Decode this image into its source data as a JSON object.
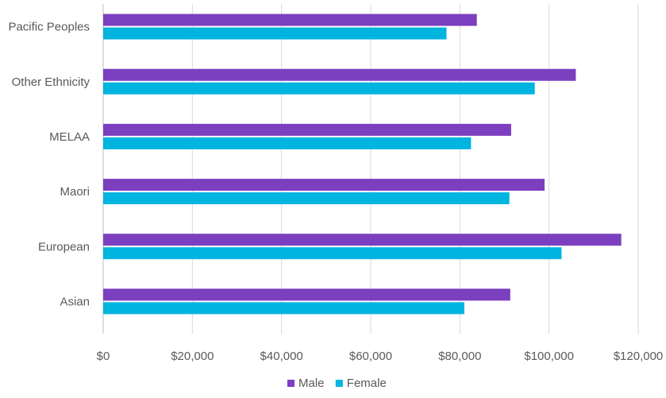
{
  "chart_data": {
    "type": "bar",
    "orientation": "horizontal",
    "title": "",
    "xlabel": "",
    "ylabel": "",
    "categories": [
      "Pacific Peoples",
      "Other Ethnicity",
      "MELAA",
      "Maori",
      "European",
      "Asian"
    ],
    "series": [
      {
        "name": "Male",
        "color": "#7b3fbf",
        "values": [
          83800,
          106000,
          91500,
          99000,
          116200,
          91300
        ]
      },
      {
        "name": "Female",
        "color": "#00b4e0",
        "values": [
          77000,
          96800,
          82500,
          91100,
          102800,
          81000
        ]
      }
    ],
    "xlim": [
      0,
      120000
    ],
    "xticks": [
      0,
      20000,
      40000,
      60000,
      80000,
      100000,
      120000
    ],
    "xtick_labels": [
      "$0",
      "$20,000",
      "$40,000",
      "$60,000",
      "$80,000",
      "$100,000",
      "$120,000"
    ],
    "grid": true,
    "legend": "bottom-center"
  }
}
